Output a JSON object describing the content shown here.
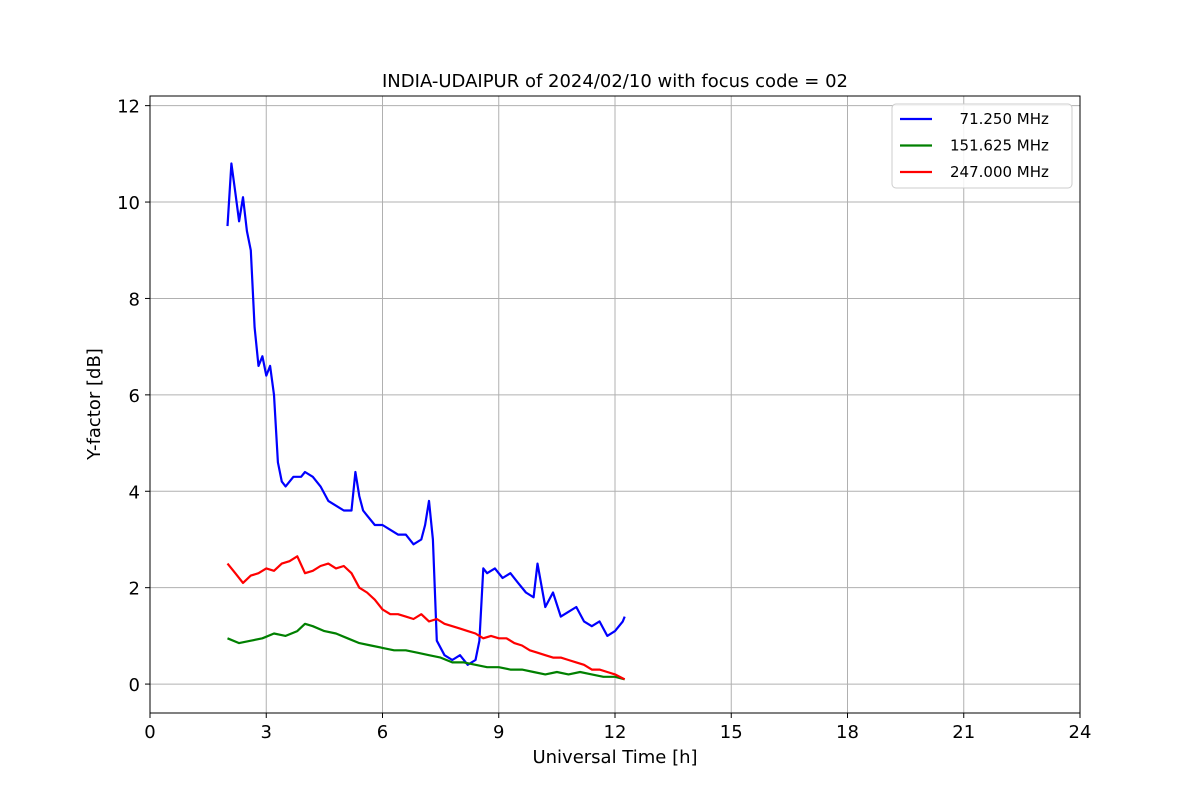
{
  "chart_data": {
    "type": "line",
    "title": "INDIA-UDAIPUR of 2024/02/10 with focus code = 02",
    "xlabel": "Universal Time [h]",
    "ylabel": "Y-factor [dB]",
    "xlim": [
      0,
      24
    ],
    "ylim": [
      -0.6,
      12.2
    ],
    "xticks": [
      0,
      3,
      6,
      9,
      12,
      15,
      18,
      21,
      24
    ],
    "yticks": [
      0,
      2,
      4,
      6,
      8,
      10,
      12
    ],
    "grid": true,
    "legend_position": "top-right",
    "series": [
      {
        "name": "  71.250 MHz",
        "color": "#0000ff",
        "x": [
          2.0,
          2.1,
          2.2,
          2.3,
          2.4,
          2.5,
          2.6,
          2.7,
          2.8,
          2.9,
          3.0,
          3.1,
          3.2,
          3.3,
          3.4,
          3.5,
          3.7,
          3.9,
          4.0,
          4.2,
          4.4,
          4.6,
          4.8,
          5.0,
          5.2,
          5.3,
          5.4,
          5.5,
          5.6,
          5.8,
          6.0,
          6.2,
          6.4,
          6.6,
          6.8,
          7.0,
          7.1,
          7.2,
          7.3,
          7.4,
          7.6,
          7.8,
          8.0,
          8.2,
          8.4,
          8.5,
          8.6,
          8.7,
          8.9,
          9.1,
          9.3,
          9.5,
          9.7,
          9.9,
          10.0,
          10.2,
          10.4,
          10.6,
          10.8,
          11.0,
          11.2,
          11.4,
          11.6,
          11.8,
          12.0,
          12.2,
          12.25
        ],
        "y": [
          9.5,
          10.8,
          10.2,
          9.6,
          10.1,
          9.4,
          9.0,
          7.4,
          6.6,
          6.8,
          6.4,
          6.6,
          6.0,
          4.6,
          4.2,
          4.1,
          4.3,
          4.3,
          4.4,
          4.3,
          4.1,
          3.8,
          3.7,
          3.6,
          3.6,
          4.4,
          3.9,
          3.6,
          3.5,
          3.3,
          3.3,
          3.2,
          3.1,
          3.1,
          2.9,
          3.0,
          3.3,
          3.8,
          3.0,
          0.9,
          0.6,
          0.5,
          0.6,
          0.4,
          0.5,
          0.9,
          2.4,
          2.3,
          2.4,
          2.2,
          2.3,
          2.1,
          1.9,
          1.8,
          2.5,
          1.6,
          1.9,
          1.4,
          1.5,
          1.6,
          1.3,
          1.2,
          1.3,
          1.0,
          1.1,
          1.3,
          1.4
        ]
      },
      {
        "name": "151.625 MHz",
        "color": "#008000",
        "x": [
          2.0,
          2.3,
          2.6,
          2.9,
          3.2,
          3.5,
          3.8,
          4.0,
          4.2,
          4.5,
          4.8,
          5.1,
          5.4,
          5.7,
          6.0,
          6.3,
          6.6,
          6.9,
          7.2,
          7.5,
          7.8,
          8.1,
          8.4,
          8.7,
          9.0,
          9.3,
          9.6,
          9.9,
          10.2,
          10.5,
          10.8,
          11.1,
          11.4,
          11.7,
          12.0,
          12.25
        ],
        "y": [
          0.95,
          0.85,
          0.9,
          0.95,
          1.05,
          1.0,
          1.1,
          1.25,
          1.2,
          1.1,
          1.05,
          0.95,
          0.85,
          0.8,
          0.75,
          0.7,
          0.7,
          0.65,
          0.6,
          0.55,
          0.45,
          0.45,
          0.4,
          0.35,
          0.35,
          0.3,
          0.3,
          0.25,
          0.2,
          0.25,
          0.2,
          0.25,
          0.2,
          0.15,
          0.15,
          0.1
        ]
      },
      {
        "name": "247.000 MHz",
        "color": "#ff0000",
        "x": [
          2.0,
          2.2,
          2.4,
          2.6,
          2.8,
          3.0,
          3.2,
          3.4,
          3.6,
          3.8,
          4.0,
          4.2,
          4.4,
          4.6,
          4.8,
          5.0,
          5.2,
          5.4,
          5.6,
          5.8,
          6.0,
          6.2,
          6.4,
          6.6,
          6.8,
          7.0,
          7.2,
          7.4,
          7.6,
          7.8,
          8.0,
          8.2,
          8.4,
          8.6,
          8.8,
          9.0,
          9.2,
          9.4,
          9.6,
          9.8,
          10.0,
          10.2,
          10.4,
          10.6,
          10.8,
          11.0,
          11.2,
          11.4,
          11.6,
          11.8,
          12.0,
          12.25
        ],
        "y": [
          2.5,
          2.3,
          2.1,
          2.25,
          2.3,
          2.4,
          2.35,
          2.5,
          2.55,
          2.65,
          2.3,
          2.35,
          2.45,
          2.5,
          2.4,
          2.45,
          2.3,
          2.0,
          1.9,
          1.75,
          1.55,
          1.45,
          1.45,
          1.4,
          1.35,
          1.45,
          1.3,
          1.35,
          1.25,
          1.2,
          1.15,
          1.1,
          1.05,
          0.95,
          1.0,
          0.95,
          0.95,
          0.85,
          0.8,
          0.7,
          0.65,
          0.6,
          0.55,
          0.55,
          0.5,
          0.45,
          0.4,
          0.3,
          0.3,
          0.25,
          0.2,
          0.1
        ]
      }
    ]
  }
}
